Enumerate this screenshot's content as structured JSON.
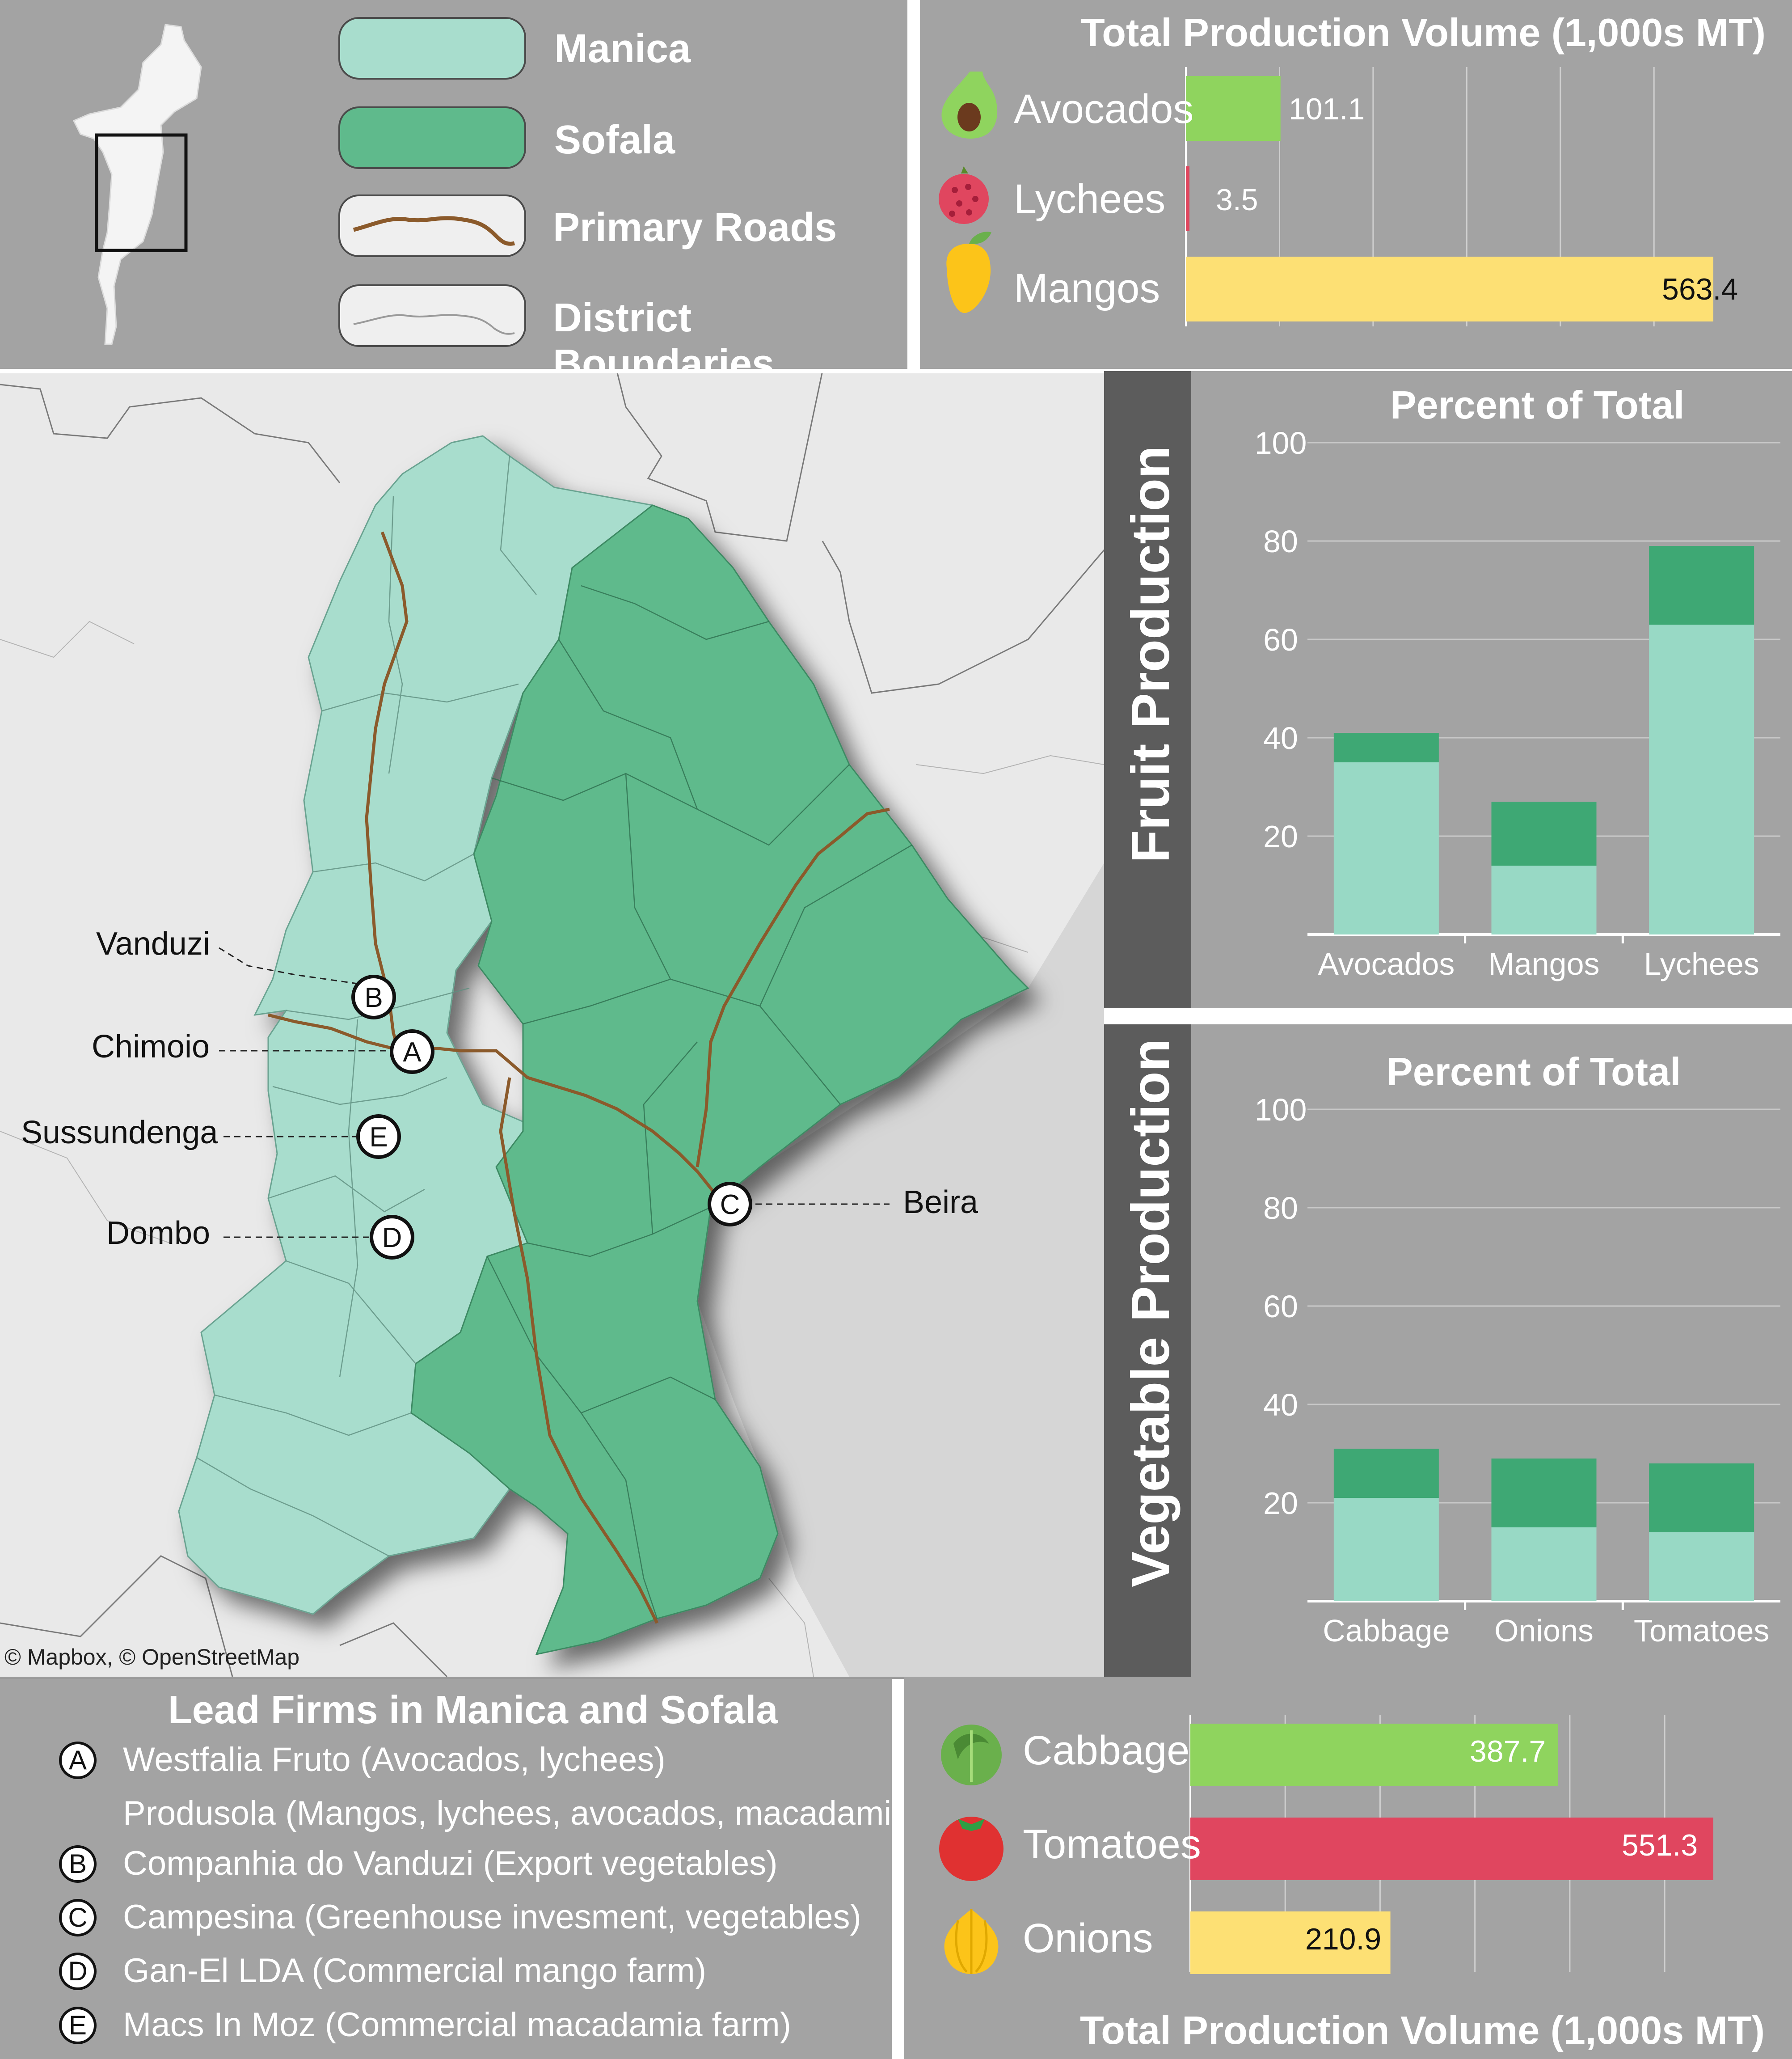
{
  "legend": {
    "items": [
      {
        "label": "Manica",
        "color": "#a8ddcd"
      },
      {
        "label": "Sofala",
        "color": "#5fba8c"
      },
      {
        "label": "Primary Roads",
        "color": "#8b5a2b"
      },
      {
        "label": "District Boundaries",
        "color": "#9a9a9a"
      }
    ]
  },
  "map": {
    "attribution": "© Mapbox, © OpenStreetMap",
    "places": [
      {
        "name": "Vanduzi",
        "marker": "B"
      },
      {
        "name": "Chimoio",
        "marker": "A"
      },
      {
        "name": "Sussundenga",
        "marker": "E"
      },
      {
        "name": "Dombo",
        "marker": "D"
      },
      {
        "name": "Beira",
        "marker": "C"
      }
    ]
  },
  "fruit_volume": {
    "title": "Total Production Volume (1,000s MT)",
    "items": [
      {
        "label": "Avocados",
        "value": 101.1,
        "display": "101.1",
        "color": "#8fd45e",
        "icon": "avocado-icon"
      },
      {
        "label": "Lychees",
        "value": 3.5,
        "display": "3.5",
        "color": "#e0465f",
        "icon": "lychee-icon"
      },
      {
        "label": "Mangos",
        "value": 563.4,
        "display": "563.4",
        "color": "#fde074",
        "icon": "mango-icon"
      }
    ]
  },
  "fruit_section": {
    "label": "Fruit Production"
  },
  "vegetable_section": {
    "label": "Vegetable Production"
  },
  "vegetable_volume": {
    "title": "Total Production Volume (1,000s MT)",
    "items": [
      {
        "label": "Cabbage",
        "value": 387.7,
        "display": "387.7",
        "color": "#8fd45e",
        "icon": "cabbage-icon"
      },
      {
        "label": "Tomatoes",
        "value": 551.3,
        "display": "551.3",
        "color": "#e0465f",
        "icon": "tomato-icon"
      },
      {
        "label": "Onions",
        "value": 210.9,
        "display": "210.9",
        "color": "#fde074",
        "icon": "onion-icon"
      }
    ]
  },
  "chart_data": [
    {
      "type": "bar",
      "stacked": true,
      "title": "Percent of Total",
      "categories": [
        "Avocados",
        "Mangos",
        "Lychees"
      ],
      "series": [
        {
          "values": [
            35,
            14,
            63
          ],
          "color": "#98d9c5"
        },
        {
          "values": [
            6,
            13,
            16
          ],
          "color": "#3ea874"
        }
      ],
      "yticks": [
        20,
        40,
        60,
        80,
        100
      ],
      "ylim": [
        0,
        100
      ]
    },
    {
      "type": "bar",
      "stacked": true,
      "title": "Percent of Total",
      "categories": [
        "Cabbage",
        "Onions",
        "Tomatoes"
      ],
      "series": [
        {
          "values": [
            21,
            15,
            14
          ],
          "color": "#98d9c5"
        },
        {
          "values": [
            10,
            14,
            14
          ],
          "color": "#3ea874"
        }
      ],
      "yticks": [
        20,
        40,
        60,
        80,
        100
      ],
      "ylim": [
        0,
        100
      ]
    }
  ],
  "firms": {
    "title": "Lead Firms in Manica and Sofala",
    "rows": [
      {
        "marker": "A",
        "text": "Westfalia Fruto (Avocados, lychees)"
      },
      {
        "marker": "",
        "text": "Produsola (Mangos, lychees, avocados, macadamia)"
      },
      {
        "marker": "B",
        "text": "Companhia do Vanduzi (Export vegetables)"
      },
      {
        "marker": "C",
        "text": "Campesina (Greenhouse invesment, vegetables)"
      },
      {
        "marker": "D",
        "text": "Gan-El LDA (Commercial mango farm)"
      },
      {
        "marker": "E",
        "text": "Macs In Moz (Commercial macadamia farm)"
      }
    ]
  }
}
